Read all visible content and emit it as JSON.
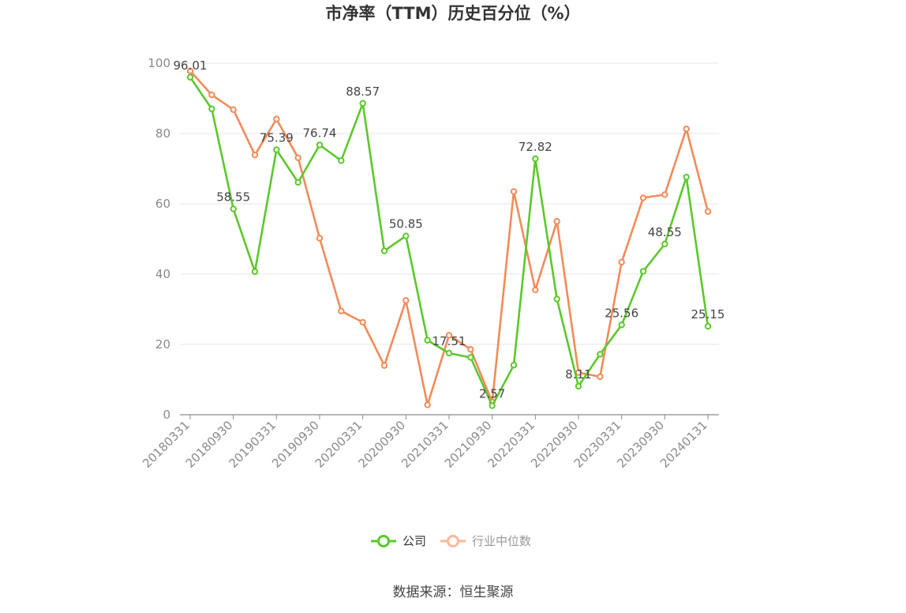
{
  "title": "市净率（TTM）历史百分位（%）",
  "source": "数据来源：恒生聚源",
  "colors": {
    "company": "#5cc82c",
    "industry": "#f28b5a",
    "grid": "#e6e6e6",
    "axis": "#8a8a8a"
  },
  "legend": [
    {
      "name": "公司",
      "color": "#5cc82c"
    },
    {
      "name": "行业中位数",
      "color": "#f7b99c"
    }
  ],
  "chart_data": {
    "type": "line",
    "title": "市净率（TTM）历史百分位（%）",
    "ylim": [
      0,
      100
    ],
    "yticks": [
      0,
      20,
      40,
      60,
      80,
      100
    ],
    "grid": true,
    "legend_position": "bottom-center",
    "x_tick_labels": [
      "20180331",
      "20180930",
      "20190331",
      "20190930",
      "20200331",
      "20200930",
      "20210331",
      "20210930",
      "20220331",
      "20220930",
      "20230331",
      "20230930",
      "20240131"
    ],
    "x": [
      "20180331",
      "20180630",
      "20180930",
      "20181231",
      "20190331",
      "20190630",
      "20190930",
      "20191231",
      "20200331",
      "20200630",
      "20200930",
      "20201231",
      "20210331",
      "20210630",
      "20210930",
      "20211231",
      "20220331",
      "20220630",
      "20220930",
      "20221231",
      "20230331",
      "20230630",
      "20230930",
      "20231231",
      "20240131"
    ],
    "series": [
      {
        "name": "公司",
        "values": [
          96.01,
          87.0,
          58.55,
          40.7,
          75.39,
          66.1,
          76.74,
          72.3,
          88.57,
          46.6,
          50.85,
          21.2,
          17.51,
          16.3,
          2.57,
          14.1,
          72.82,
          32.9,
          8.11,
          17.2,
          25.56,
          40.8,
          48.55,
          67.6,
          25.15
        ],
        "labels": {
          "0": "96.01",
          "2": "58.55",
          "4": "75.39",
          "6": "76.74",
          "8": "88.57",
          "10": "50.85",
          "12": "17.51",
          "14": "2.57",
          "16": "72.82",
          "18": "8.11",
          "20": "25.56",
          "22": "48.55",
          "24": "25.15"
        }
      },
      {
        "name": "行业中位数",
        "values": [
          97.8,
          91.0,
          86.8,
          73.9,
          84.1,
          73.1,
          50.2,
          29.5,
          26.3,
          14.0,
          32.5,
          2.8,
          22.6,
          18.6,
          3.6,
          63.5,
          35.5,
          55.0,
          12.0,
          10.8,
          43.4,
          61.7,
          62.6,
          81.3,
          57.8
        ]
      }
    ]
  }
}
